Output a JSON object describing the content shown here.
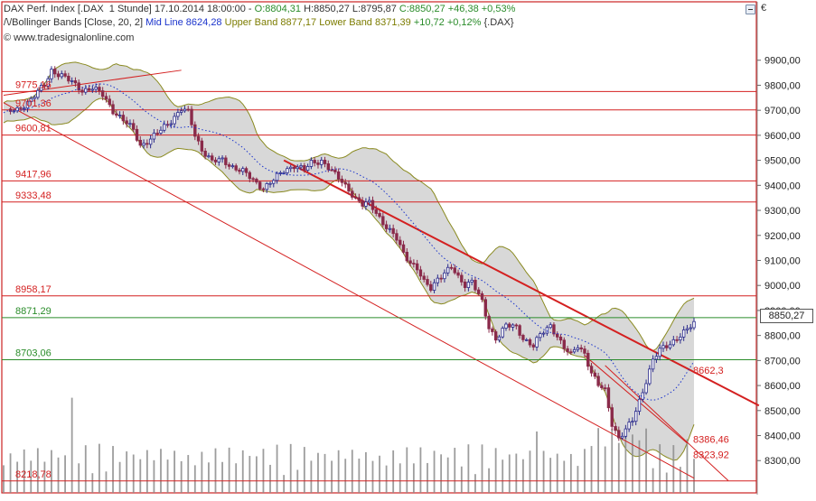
{
  "header": {
    "title": "DAX Perf. Index [.DAX  1 Stunde]",
    "timestamp": "17.10.2014 18:00:00",
    "ohlc": {
      "open": "O:8804,31",
      "high": "H:8850,27",
      "low": "L:8795,87",
      "close": "C:8850,27",
      "change": "+46,38 +0,53%"
    },
    "indicator_name": "Bollinger Bands [Close, 20, 2]",
    "mid": "Mid Line 8624,28",
    "upper": "Upper Band 8877,17",
    "lower": "Lower Band 8371,39",
    "change2": "+10,72 +0,12%",
    "symbol": "{.DAX}",
    "watermark": "© www.tradesignalonline.com"
  },
  "currency_symbol": "€",
  "last_price_label": "8850,27",
  "colors": {
    "up": "#2a2a8c",
    "down": "#8a2a4a",
    "band_fill": "#d8d8d8",
    "band_line": "#8a8a20",
    "midline": "#1a33cc",
    "red_level": "#d42020",
    "green_level": "#2a8c2a",
    "volume": "#8c8c8c"
  },
  "chart_data": {
    "type": "candlestick",
    "title": "DAX Perf. Index [.DAX  1 Stunde]",
    "y_axis": {
      "ticks": [
        "8300,00",
        "8400,00",
        "8500,00",
        "8600,00",
        "8700,00",
        "8800,00",
        "8900,00",
        "9000,00",
        "9100,00",
        "9200,00",
        "9300,00",
        "9400,00",
        "9500,00",
        "9600,00",
        "9700,00",
        "9800,00",
        "9900,00"
      ],
      "tick_values": [
        8300,
        8400,
        8500,
        8600,
        8700,
        8800,
        8900,
        9000,
        9100,
        9200,
        9300,
        9400,
        9500,
        9600,
        9700,
        9800,
        9900
      ],
      "range": [
        8200,
        10000
      ]
    },
    "horizontal_levels": [
      {
        "label": "9775,16",
        "value": 9775.16,
        "color": "red"
      },
      {
        "label": "9701,36",
        "value": 9701.36,
        "color": "red"
      },
      {
        "label": "9600,81",
        "value": 9600.81,
        "color": "red"
      },
      {
        "label": "9417,96",
        "value": 9417.96,
        "color": "red"
      },
      {
        "label": "9333,48",
        "value": 9333.48,
        "color": "red"
      },
      {
        "label": "8958,17",
        "value": 8958.17,
        "color": "red"
      },
      {
        "label": "8871,29",
        "value": 8871.29,
        "color": "green"
      },
      {
        "label": "8703,06",
        "value": 8703.06,
        "color": "green"
      },
      {
        "label": "8218,78",
        "value": 8218.78,
        "color": "red"
      }
    ],
    "line_labels": [
      {
        "label": "8662,3",
        "value": 8662.3
      },
      {
        "label": "8386,46",
        "value": 8386.46
      },
      {
        "label": "8323,92",
        "value": 8323.92
      }
    ],
    "close_path": [
      [
        0,
        9690
      ],
      [
        4,
        9700
      ],
      [
        8,
        9745
      ],
      [
        12,
        9800
      ],
      [
        14,
        9860
      ],
      [
        17,
        9840
      ],
      [
        20,
        9810
      ],
      [
        23,
        9780
      ],
      [
        26,
        9790
      ],
      [
        29,
        9760
      ],
      [
        32,
        9700
      ],
      [
        35,
        9660
      ],
      [
        38,
        9620
      ],
      [
        40,
        9560
      ],
      [
        43,
        9585
      ],
      [
        46,
        9620
      ],
      [
        49,
        9660
      ],
      [
        52,
        9705
      ],
      [
        54,
        9690
      ],
      [
        56,
        9600
      ],
      [
        58,
        9545
      ],
      [
        61,
        9495
      ],
      [
        64,
        9500
      ],
      [
        67,
        9475
      ],
      [
        70,
        9455
      ],
      [
        73,
        9420
      ],
      [
        76,
        9390
      ],
      [
        79,
        9420
      ],
      [
        82,
        9460
      ],
      [
        85,
        9480
      ],
      [
        88,
        9460
      ],
      [
        90,
        9490
      ],
      [
        93,
        9500
      ],
      [
        95,
        9470
      ],
      [
        97,
        9440
      ],
      [
        99,
        9415
      ],
      [
        101,
        9385
      ],
      [
        103,
        9345
      ],
      [
        105,
        9320
      ],
      [
        107,
        9330
      ],
      [
        109,
        9295
      ],
      [
        111,
        9250
      ],
      [
        113,
        9215
      ],
      [
        115,
        9185
      ],
      [
        117,
        9130
      ],
      [
        119,
        9095
      ],
      [
        121,
        9065
      ],
      [
        123,
        9010
      ],
      [
        125,
        8990
      ],
      [
        127,
        9030
      ],
      [
        129,
        9050
      ],
      [
        131,
        9070
      ],
      [
        133,
        9030
      ],
      [
        135,
        9005
      ],
      [
        137,
        9020
      ],
      [
        140,
        8930
      ],
      [
        142,
        8830
      ],
      [
        144,
        8790
      ],
      [
        147,
        8840
      ],
      [
        150,
        8830
      ],
      [
        152,
        8790
      ],
      [
        155,
        8760
      ],
      [
        157,
        8800
      ],
      [
        160,
        8840
      ],
      [
        162,
        8800
      ],
      [
        164,
        8750
      ],
      [
        166,
        8720
      ],
      [
        168,
        8760
      ],
      [
        170,
        8730
      ],
      [
        172,
        8650
      ],
      [
        174,
        8600
      ],
      [
        176,
        8580
      ],
      [
        178,
        8450
      ],
      [
        180,
        8390
      ],
      [
        182,
        8420
      ],
      [
        184,
        8460
      ],
      [
        186,
        8540
      ],
      [
        188,
        8620
      ],
      [
        190,
        8700
      ],
      [
        192,
        8740
      ],
      [
        194,
        8760
      ],
      [
        196,
        8780
      ],
      [
        198,
        8800
      ],
      [
        200,
        8820
      ],
      [
        202,
        8850
      ]
    ],
    "volume_spikes": [
      {
        "x": 20,
        "rel": 0.62
      },
      {
        "x": 156,
        "rel": 0.4
      },
      {
        "x": 200,
        "rel": 0.35
      }
    ]
  }
}
